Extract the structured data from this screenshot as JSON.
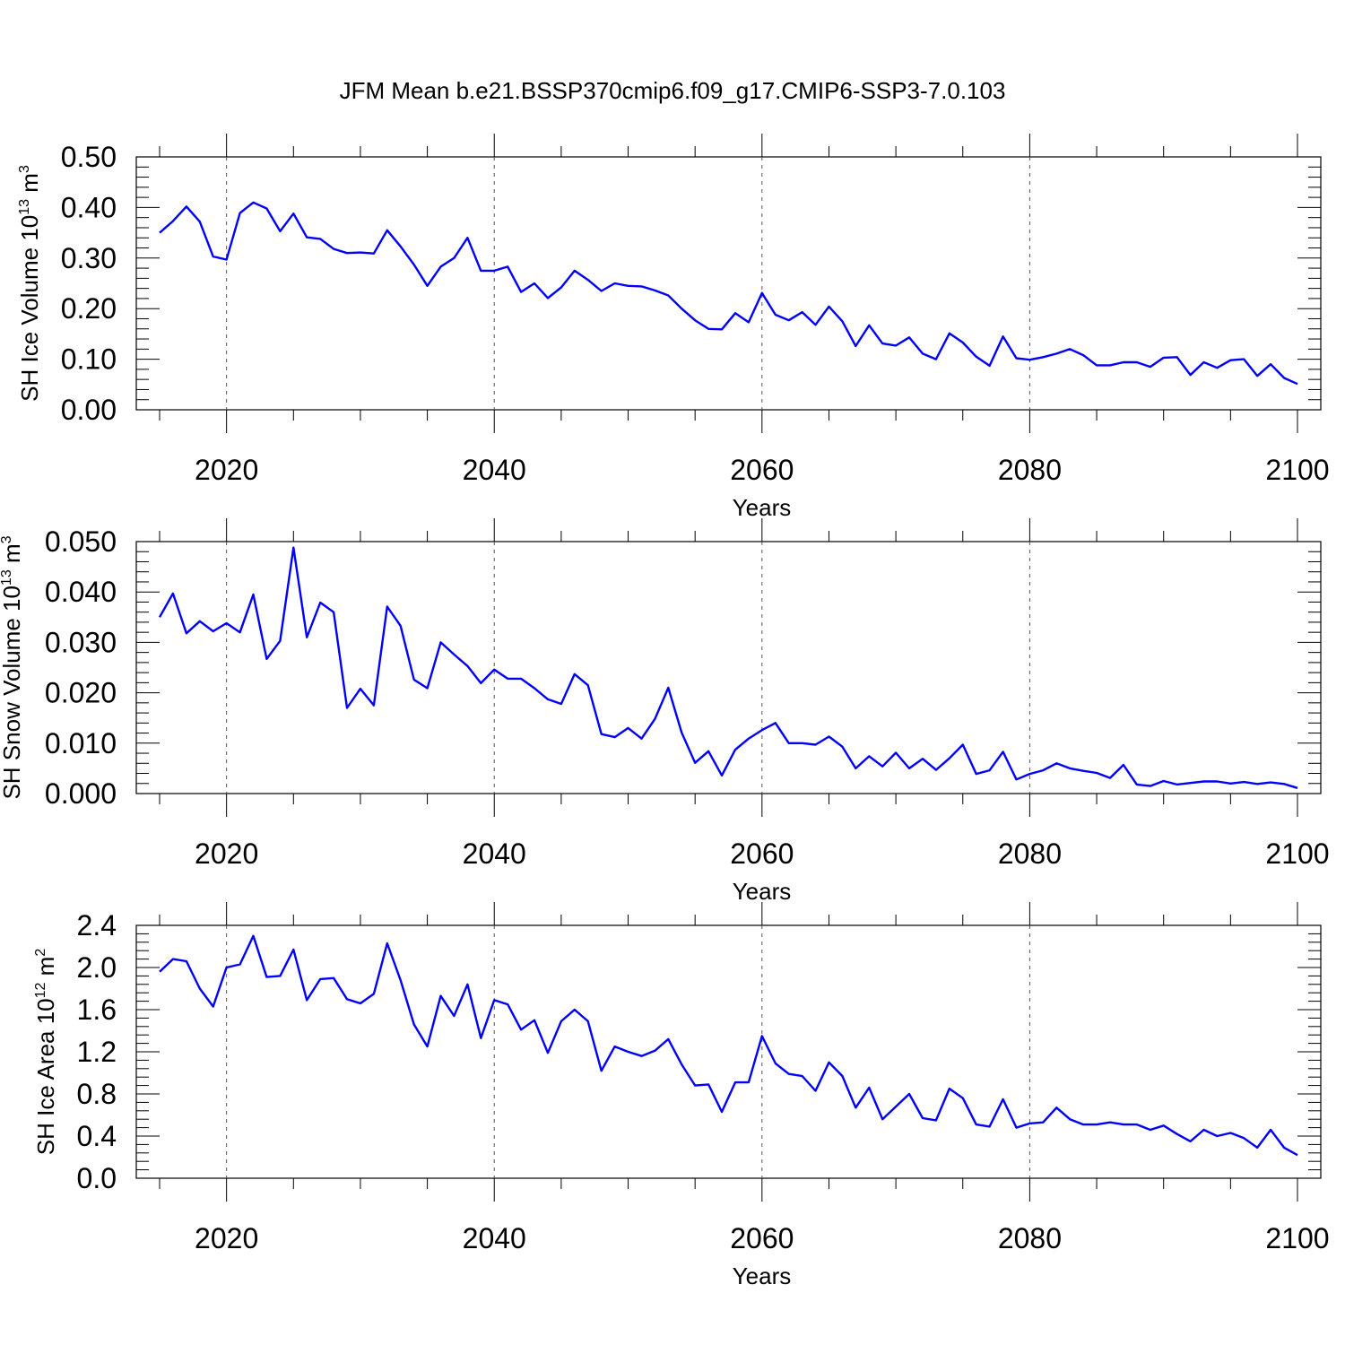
{
  "title": "JFM Mean b.e21.BSSP370cmip6.f09_g17.CMIP6-SSP3-7.0.103",
  "colors": {
    "series": "#0000ff",
    "axis": "#000000"
  },
  "chart_data": [
    {
      "type": "line",
      "ylabel": {
        "text": "SH Ice Volume 10",
        "exp": "13",
        "unit": " m",
        "unit_exp": "3"
      },
      "xlabel": "Years",
      "xlim": [
        2015,
        2100
      ],
      "ylim": [
        0,
        0.5
      ],
      "xticks": [
        "2020",
        "2040",
        "2060",
        "2080",
        "2100"
      ],
      "yticks": [
        "0.00",
        "0.10",
        "0.20",
        "0.30",
        "0.40",
        "0.50"
      ],
      "ytick_values": [
        0,
        0.1,
        0.2,
        0.3,
        0.4,
        0.5
      ],
      "grid_x": [
        2020,
        2040,
        2060,
        2080
      ],
      "series": [
        {
          "x_start": 2015,
          "values": [
            0.35,
            0.373,
            0.402,
            0.372,
            0.303,
            0.297,
            0.389,
            0.41,
            0.398,
            0.353,
            0.388,
            0.341,
            0.338,
            0.318,
            0.31,
            0.311,
            0.309,
            0.355,
            0.323,
            0.287,
            0.245,
            0.283,
            0.3,
            0.34,
            0.275,
            0.275,
            0.283,
            0.233,
            0.25,
            0.221,
            0.242,
            0.275,
            0.257,
            0.235,
            0.25,
            0.245,
            0.244,
            0.236,
            0.226,
            0.2,
            0.177,
            0.16,
            0.159,
            0.191,
            0.173,
            0.231,
            0.188,
            0.177,
            0.193,
            0.168,
            0.204,
            0.175,
            0.126,
            0.167,
            0.131,
            0.127,
            0.143,
            0.111,
            0.1,
            0.151,
            0.133,
            0.105,
            0.087,
            0.145,
            0.102,
            0.099,
            0.104,
            0.111,
            0.12,
            0.108,
            0.088,
            0.088,
            0.094,
            0.094,
            0.085,
            0.103,
            0.104,
            0.069,
            0.094,
            0.083,
            0.098,
            0.1,
            0.067,
            0.09,
            0.063,
            0.051
          ]
        }
      ]
    },
    {
      "type": "line",
      "ylabel": {
        "text": "SH Snow Volume 10",
        "exp": "13",
        "unit": " m",
        "unit_exp": "3"
      },
      "xlabel": "Years",
      "xlim": [
        2015,
        2100
      ],
      "ylim": [
        0,
        0.05
      ],
      "xticks": [
        "2020",
        "2040",
        "2060",
        "2080",
        "2100"
      ],
      "yticks": [
        "0.000",
        "0.010",
        "0.020",
        "0.030",
        "0.040",
        "0.050"
      ],
      "ytick_values": [
        0,
        0.01,
        0.02,
        0.03,
        0.04,
        0.05
      ],
      "grid_x": [
        2020,
        2040,
        2060,
        2080
      ],
      "series": [
        {
          "x_start": 2015,
          "values": [
            0.035,
            0.0397,
            0.0318,
            0.0342,
            0.0322,
            0.0338,
            0.032,
            0.0395,
            0.0267,
            0.0303,
            0.0488,
            0.031,
            0.0379,
            0.036,
            0.017,
            0.0208,
            0.0175,
            0.0371,
            0.0333,
            0.0226,
            0.0209,
            0.03,
            0.0276,
            0.0253,
            0.0219,
            0.0246,
            0.0228,
            0.0228,
            0.0209,
            0.0187,
            0.0178,
            0.0237,
            0.0215,
            0.0118,
            0.0112,
            0.013,
            0.0109,
            0.0148,
            0.021,
            0.0121,
            0.0061,
            0.0084,
            0.0036,
            0.0087,
            0.0109,
            0.0126,
            0.014,
            0.01,
            0.01,
            0.0097,
            0.0113,
            0.0093,
            0.005,
            0.0074,
            0.0054,
            0.0081,
            0.005,
            0.0069,
            0.0047,
            0.007,
            0.0097,
            0.0039,
            0.0046,
            0.0083,
            0.0028,
            0.0039,
            0.0046,
            0.006,
            0.005,
            0.0045,
            0.0041,
            0.0031,
            0.0057,
            0.0018,
            0.0015,
            0.0025,
            0.0018,
            0.0021,
            0.0024,
            0.0024,
            0.002,
            0.0023,
            0.0019,
            0.0022,
            0.0019,
            0.0011
          ]
        }
      ]
    },
    {
      "type": "line",
      "ylabel": {
        "text": "SH Ice Area 10",
        "exp": "12",
        "unit": " m",
        "unit_exp": "2"
      },
      "xlabel": "Years",
      "xlim": [
        2015,
        2100
      ],
      "ylim": [
        0,
        2.4
      ],
      "xticks": [
        "2020",
        "2040",
        "2060",
        "2080",
        "2100"
      ],
      "yticks": [
        "0.0",
        "0.4",
        "0.8",
        "1.2",
        "1.6",
        "2.0",
        "2.4"
      ],
      "ytick_values": [
        0,
        0.4,
        0.8,
        1.2,
        1.6,
        2.0,
        2.4
      ],
      "grid_x": [
        2020,
        2040,
        2060,
        2080
      ],
      "series": [
        {
          "x_start": 2015,
          "values": [
            1.96,
            2.08,
            2.06,
            1.8,
            1.63,
            2.0,
            2.03,
            2.3,
            1.91,
            1.92,
            2.17,
            1.69,
            1.89,
            1.9,
            1.7,
            1.66,
            1.75,
            2.23,
            1.88,
            1.46,
            1.25,
            1.73,
            1.54,
            1.84,
            1.33,
            1.69,
            1.65,
            1.41,
            1.5,
            1.19,
            1.49,
            1.6,
            1.49,
            1.02,
            1.25,
            1.2,
            1.16,
            1.21,
            1.32,
            1.08,
            0.88,
            0.89,
            0.63,
            0.91,
            0.91,
            1.35,
            1.09,
            0.99,
            0.97,
            0.83,
            1.1,
            0.97,
            0.67,
            0.86,
            0.56,
            0.68,
            0.8,
            0.57,
            0.55,
            0.85,
            0.76,
            0.51,
            0.49,
            0.75,
            0.48,
            0.52,
            0.53,
            0.67,
            0.56,
            0.51,
            0.51,
            0.53,
            0.51,
            0.51,
            0.46,
            0.5,
            0.42,
            0.35,
            0.46,
            0.4,
            0.43,
            0.38,
            0.29,
            0.46,
            0.29,
            0.22
          ]
        }
      ]
    }
  ]
}
